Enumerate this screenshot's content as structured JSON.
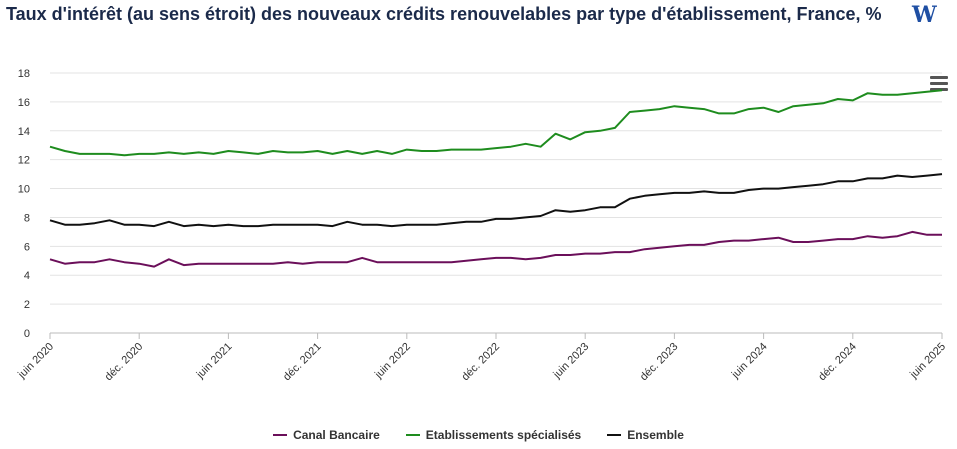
{
  "header": {
    "title": "Taux d'intérêt (au sens étroit) des nouveaux crédits renouvelables par type d'établissement, France, %",
    "logo_text": "W"
  },
  "menu": {
    "icon": "hamburger-menu-icon"
  },
  "chart_data": {
    "type": "line",
    "ylim": [
      0,
      18
    ],
    "yticks": [
      0,
      2,
      4,
      6,
      8,
      10,
      12,
      14,
      16,
      18
    ],
    "x_tick_labels": [
      "juin 2020",
      "déc. 2020",
      "juin 2021",
      "déc. 2021",
      "juin 2022",
      "déc. 2022",
      "juin 2023",
      "déc. 2023",
      "juin 2024",
      "déc. 2024",
      "juin 2025"
    ],
    "x_tick_month_index": [
      0,
      6,
      12,
      18,
      24,
      30,
      36,
      42,
      48,
      54,
      60
    ],
    "grid": true,
    "legend_position": "bottom-center",
    "series": [
      {
        "name": "Canal Bancaire",
        "color": "#6b0f5a",
        "values": [
          5.1,
          4.8,
          4.9,
          4.9,
          5.1,
          4.9,
          4.8,
          4.6,
          5.1,
          4.7,
          4.8,
          4.8,
          4.8,
          4.8,
          4.8,
          4.8,
          4.9,
          4.8,
          4.9,
          4.9,
          4.9,
          5.2,
          4.9,
          4.9,
          4.9,
          4.9,
          4.9,
          4.9,
          5.0,
          5.1,
          5.2,
          5.2,
          5.1,
          5.2,
          5.4,
          5.4,
          5.5,
          5.5,
          5.6,
          5.6,
          5.8,
          5.9,
          6.0,
          6.1,
          6.1,
          6.3,
          6.4,
          6.4,
          6.5,
          6.6,
          6.3,
          6.3,
          6.4,
          6.5,
          6.5,
          6.7,
          6.6,
          6.7,
          7.0,
          6.8,
          6.8
        ]
      },
      {
        "name": "Etablissements spécialisés",
        "color": "#1e8c1e",
        "values": [
          12.9,
          12.6,
          12.4,
          12.4,
          12.4,
          12.3,
          12.4,
          12.4,
          12.5,
          12.4,
          12.5,
          12.4,
          12.6,
          12.5,
          12.4,
          12.6,
          12.5,
          12.5,
          12.6,
          12.4,
          12.6,
          12.4,
          12.6,
          12.4,
          12.7,
          12.6,
          12.6,
          12.7,
          12.7,
          12.7,
          12.8,
          12.9,
          13.1,
          12.9,
          13.8,
          13.4,
          13.9,
          14.0,
          14.2,
          15.3,
          15.4,
          15.5,
          15.7,
          15.6,
          15.5,
          15.2,
          15.2,
          15.5,
          15.6,
          15.3,
          15.7,
          15.8,
          15.9,
          16.2,
          16.1,
          16.6,
          16.5,
          16.5,
          16.6,
          16.7,
          16.8
        ]
      },
      {
        "name": "Ensemble",
        "color": "#111111",
        "values": [
          7.8,
          7.5,
          7.5,
          7.6,
          7.8,
          7.5,
          7.5,
          7.4,
          7.7,
          7.4,
          7.5,
          7.4,
          7.5,
          7.4,
          7.4,
          7.5,
          7.5,
          7.5,
          7.5,
          7.4,
          7.7,
          7.5,
          7.5,
          7.4,
          7.5,
          7.5,
          7.5,
          7.6,
          7.7,
          7.7,
          7.9,
          7.9,
          8.0,
          8.1,
          8.5,
          8.4,
          8.5,
          8.7,
          8.7,
          9.3,
          9.5,
          9.6,
          9.7,
          9.7,
          9.8,
          9.7,
          9.7,
          9.9,
          10.0,
          10.0,
          10.1,
          10.2,
          10.3,
          10.5,
          10.5,
          10.7,
          10.7,
          10.9,
          10.8,
          10.9,
          11.0
        ]
      }
    ]
  }
}
